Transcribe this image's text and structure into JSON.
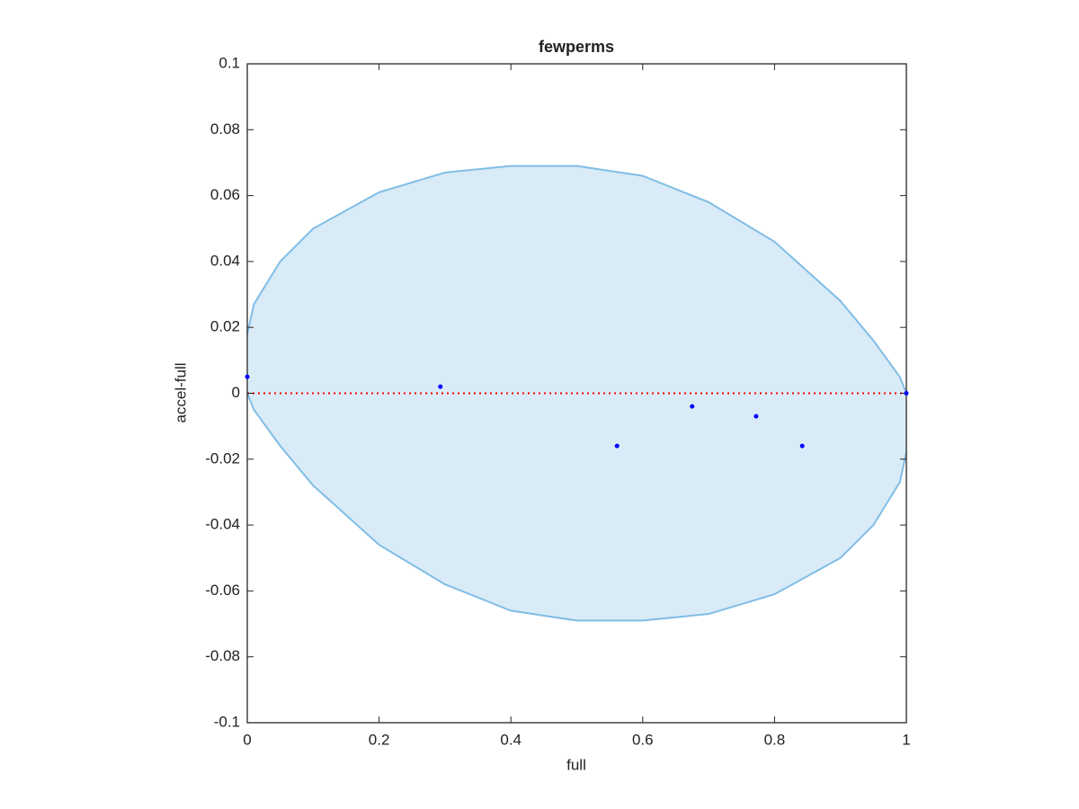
{
  "chart_data": {
    "type": "scatter",
    "title": "fewperms",
    "x_label": "full",
    "y_label": "accel-full",
    "x": [
      0,
      0.293,
      0.561,
      0.675,
      0.772,
      0.842,
      1
    ],
    "values": [
      0.005,
      0.002,
      -0.016,
      -0.004,
      -0.007,
      -0.016,
      0
    ],
    "color": "#0000ff",
    "ellipse": {
      "color": "#80bde6",
      "x": [
        0,
        0.01,
        0.05,
        0.1,
        0.2,
        0.3,
        0.4,
        0.5,
        0.6,
        0.7,
        0.8,
        0.9,
        0.95,
        0.99,
        1
      ],
      "upper": [
        0.018,
        0.027,
        0.04,
        0.05,
        0.061,
        0.067,
        0.069,
        0.069,
        0.066,
        0.058,
        0.046,
        0.028,
        0.016,
        0.005,
        0
      ],
      "lower": [
        0,
        -0.005,
        -0.016,
        -0.028,
        -0.046,
        -0.058,
        -0.066,
        -0.069,
        -0.069,
        -0.067,
        -0.061,
        -0.05,
        -0.04,
        -0.027,
        -0.018
      ]
    },
    "hline": {
      "value": 0,
      "color": "#ff0000"
    },
    "xlim": [
      0,
      1
    ],
    "xticks": [
      0,
      0.2,
      0.4,
      0.6,
      0.8,
      1
    ],
    "ylim": [
      -0.1,
      0.1
    ],
    "yticks": [
      -0.1,
      -0.08,
      -0.06,
      -0.04,
      -0.02,
      0,
      0.02,
      0.04,
      0.06,
      0.08,
      0.1
    ],
    "grid": false
  }
}
